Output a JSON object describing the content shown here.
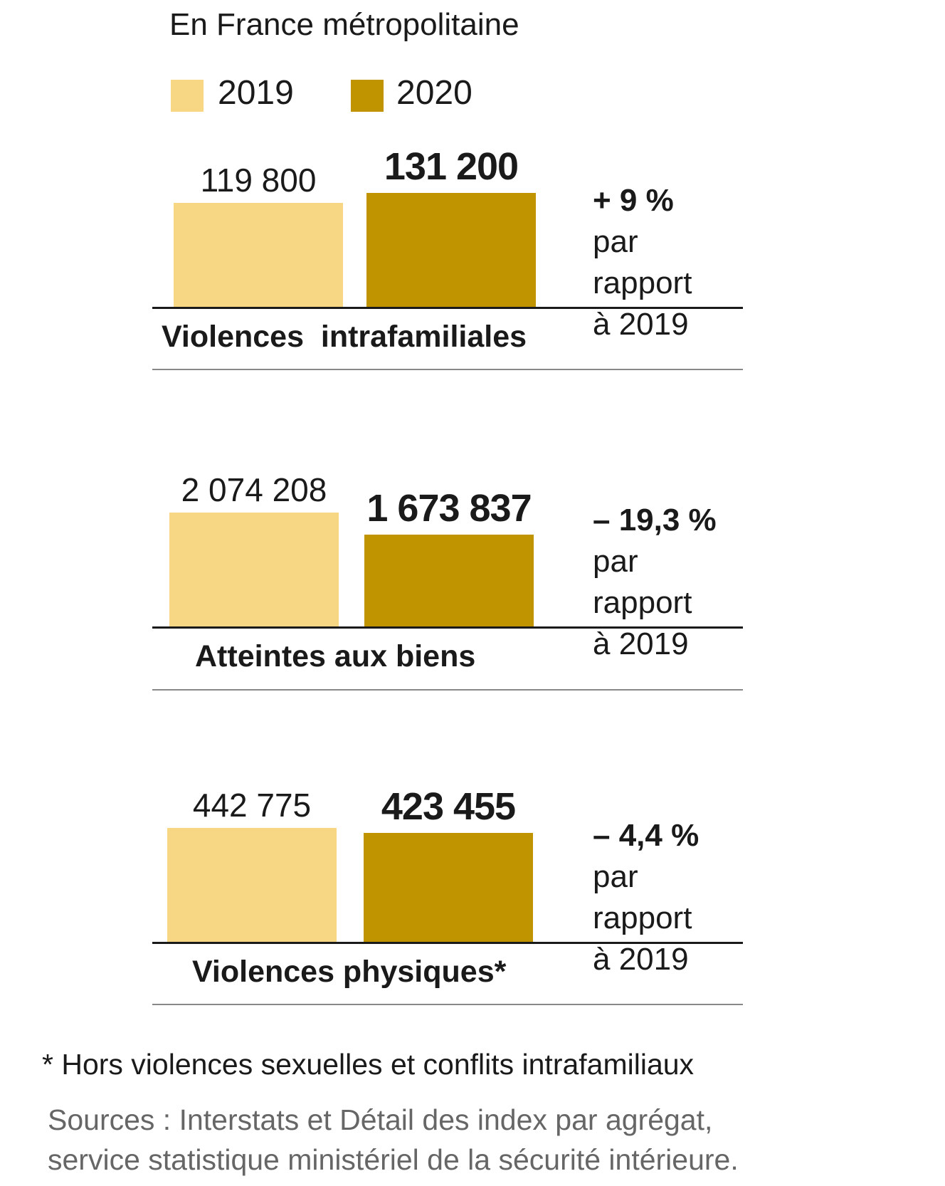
{
  "subtitle": "En France métropolitaine",
  "legend": [
    {
      "label": "2019",
      "color": "#F8D784"
    },
    {
      "label": "2020",
      "color": "#C09300"
    }
  ],
  "chart_data": {
    "type": "bar",
    "title": "En France métropolitaine",
    "categories": [
      "Violences  intrafamiliales",
      "Atteintes aux biens",
      "Violences physiques*"
    ],
    "series": [
      {
        "name": "2019",
        "values": [
          119800,
          2074208,
          442775
        ],
        "labels": [
          "119 800",
          "2 074 208",
          "442 775"
        ],
        "color": "#F8D784"
      },
      {
        "name": "2020",
        "values": [
          131200,
          1673837,
          423455
        ],
        "labels": [
          "131 200",
          "1 673 837",
          "423 455"
        ],
        "color": "#C09300"
      }
    ],
    "changes": [
      {
        "pct": "+ 9 %",
        "line1": "par rapport",
        "line2": "à 2019"
      },
      {
        "pct": "– 19,3 %",
        "line1": "par rapport",
        "line2": "à 2019"
      },
      {
        "pct": "– 4,4 %",
        "line1": "par rapport",
        "line2": "à 2019"
      }
    ],
    "scale": "each panel scaled independently",
    "legend_position": "top-left"
  },
  "footnote": "* Hors violences sexuelles et conflits intrafamiliaux",
  "sources": [
    "Sources : Interstats et Détail des index par agrégat,",
    "service statistique ministériel de la sécurité intérieure."
  ]
}
